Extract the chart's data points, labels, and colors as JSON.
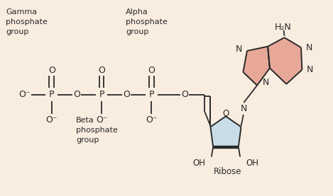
{
  "background_color": "#f9ede0",
  "line_color": "#2a2a2a",
  "purine_fill": "#e8a898",
  "ribose_fill": "#c8dde8",
  "text_color": "#2a2a2a",
  "p_color": "#2a2a2a",
  "figsize": [
    4.69,
    2.77
  ],
  "dpi": 100,
  "xlim": [
    0,
    10
  ],
  "ylim": [
    0,
    5.9
  ]
}
